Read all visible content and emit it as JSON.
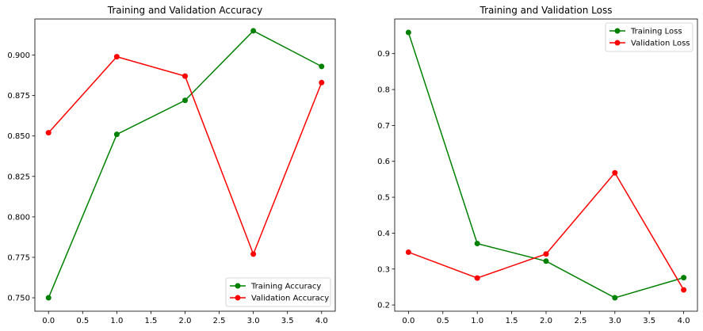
{
  "chart_data": [
    {
      "type": "line",
      "title": "Training and Validation Accuracy",
      "xlabel": "",
      "ylabel": "",
      "x": [
        0,
        1,
        2,
        3,
        4
      ],
      "xlim": [
        -0.2,
        4.2
      ],
      "ylim": [
        0.7417,
        0.9223
      ],
      "xticks": [
        "0.0",
        "0.5",
        "1.0",
        "1.5",
        "2.0",
        "2.5",
        "3.0",
        "3.5",
        "4.0"
      ],
      "yticks": [
        "0.750",
        "0.775",
        "0.800",
        "0.825",
        "0.850",
        "0.875",
        "0.900"
      ],
      "grid": false,
      "legend_position": "bottom-right",
      "series": [
        {
          "name": "Training Accuracy",
          "color": "#008000",
          "marker": "circle",
          "values": [
            0.75,
            0.851,
            0.872,
            0.915,
            0.893
          ]
        },
        {
          "name": "Validation Accuracy",
          "color": "#ff0000",
          "marker": "circle",
          "values": [
            0.852,
            0.899,
            0.887,
            0.777,
            0.883
          ]
        }
      ]
    },
    {
      "type": "line",
      "title": "Training and Validation Loss",
      "xlabel": "",
      "ylabel": "",
      "x": [
        0,
        1,
        2,
        3,
        4
      ],
      "xlim": [
        -0.2,
        4.2
      ],
      "ylim": [
        0.1826,
        0.9964
      ],
      "xticks": [
        "0.0",
        "0.5",
        "1.0",
        "1.5",
        "2.0",
        "2.5",
        "3.0",
        "3.5",
        "4.0"
      ],
      "yticks": [
        "0.2",
        "0.3",
        "0.4",
        "0.5",
        "0.6",
        "0.7",
        "0.8",
        "0.9"
      ],
      "grid": false,
      "legend_position": "top-right",
      "series": [
        {
          "name": "Training Loss",
          "color": "#008000",
          "marker": "circle",
          "values": [
            0.959,
            0.371,
            0.322,
            0.22,
            0.276
          ]
        },
        {
          "name": "Validation Loss",
          "color": "#ff0000",
          "marker": "circle",
          "values": [
            0.347,
            0.275,
            0.342,
            0.568,
            0.242
          ]
        }
      ]
    }
  ]
}
